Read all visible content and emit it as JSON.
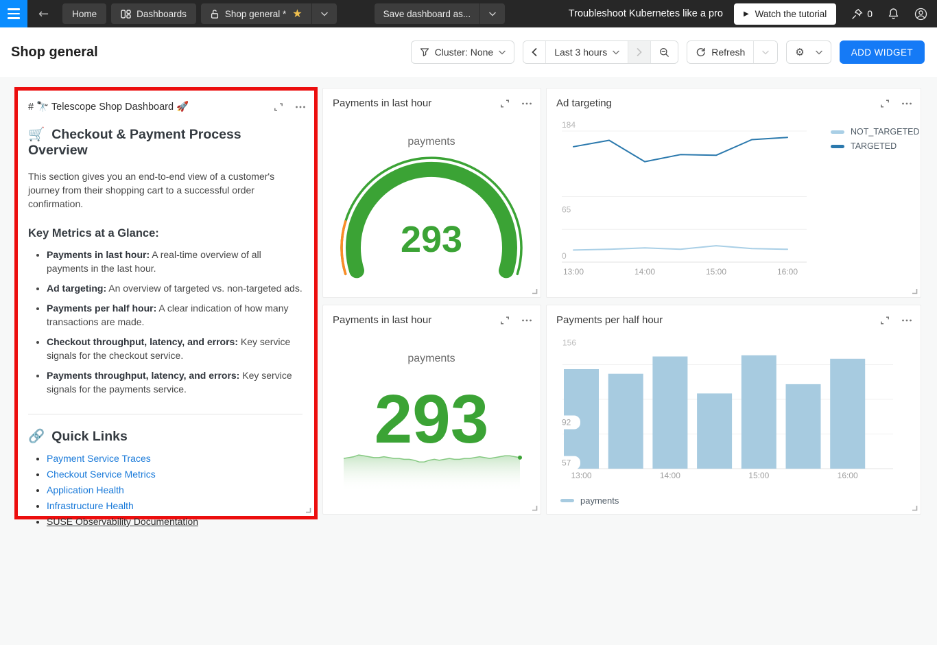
{
  "navbar": {
    "home": "Home",
    "dashboards": "Dashboards",
    "shop_tab": "Shop general *",
    "star": "★",
    "save_as": "Save dashboard as...",
    "promo_text": "Troubleshoot Kubernetes like a pro",
    "watch_button": "Watch the tutorial",
    "pin_count": "0"
  },
  "header": {
    "title": "Shop general",
    "cluster_button": "Cluster: None",
    "time_range": "Last 3 hours",
    "refresh": "Refresh",
    "add_widget": "ADD WIDGET"
  },
  "markdown_widget": {
    "title": "# 🔭 Telescope Shop Dashboard 🚀",
    "heading_icon": "🛒",
    "heading_text": "Checkout & Payment Process Overview",
    "intro": "This section gives you an end-to-end view of a customer's journey from their shopping cart to a successful order confirmation.",
    "metrics_heading": "Key Metrics at a Glance:",
    "metrics": [
      {
        "label": "Payments in last hour:",
        "text": "A real-time overview of all payments in the last hour."
      },
      {
        "label": "Ad targeting:",
        "text": "An overview of targeted vs. non-targeted ads."
      },
      {
        "label": "Payments per half hour:",
        "text": "A clear indication of how many transactions are made."
      },
      {
        "label": "Checkout throughput, latency, and errors:",
        "text": "Key service signals for the checkout service."
      },
      {
        "label": "Payments throughput, latency, and errors:",
        "text": "Key service signals for the payments service."
      }
    ],
    "links_icon": "🔗",
    "links_text": "Quick Links",
    "links": [
      {
        "label": "Payment Service Traces",
        "style": "link"
      },
      {
        "label": "Checkout Service Metrics",
        "style": "link"
      },
      {
        "label": "Application Health",
        "style": "link"
      },
      {
        "label": "Infrastructure Health",
        "style": "link"
      },
      {
        "label": "SUSE Observability Documentation",
        "style": "plain-underline"
      }
    ]
  },
  "widgets": {
    "gauge": {
      "title": "Payments in last hour"
    },
    "ad_targeting": {
      "title": "Ad targeting"
    },
    "number": {
      "title": "Payments in last hour"
    },
    "bars": {
      "title": "Payments per half hour"
    }
  },
  "chart_data": [
    {
      "id": "gauge-payments",
      "type": "gauge",
      "title": "Payments in last hour",
      "metric_label": "payments",
      "value": 293,
      "color_ok": "#3ba335",
      "color_warn": "#fc8b26"
    },
    {
      "id": "ad-targeting",
      "type": "line",
      "title": "Ad targeting",
      "x": [
        "13:00",
        "13:30",
        "14:00",
        "14:30",
        "15:00",
        "15:30",
        "16:00"
      ],
      "x_tick_labels": [
        "13:00",
        "14:00",
        "15:00",
        "16:00"
      ],
      "yticks": [
        184,
        65,
        0
      ],
      "gridline_values": [
        184,
        92,
        46,
        0
      ],
      "ylim": [
        0,
        184
      ],
      "legend_position": "right",
      "series": [
        {
          "name": "NOT_TARGETED",
          "color": "#a9cfe6",
          "values": [
            17,
            18,
            20,
            18,
            23,
            19,
            18
          ]
        },
        {
          "name": "TARGETED",
          "color": "#2b79ad",
          "values": [
            162,
            171,
            141,
            151,
            150,
            172,
            175
          ]
        }
      ]
    },
    {
      "id": "payments-number",
      "type": "number+spark",
      "title": "Payments in last hour",
      "metric_label": "payments",
      "value": 293,
      "color": "#3ba335",
      "spark": [
        292,
        293,
        294,
        296,
        295,
        294,
        293,
        293,
        294,
        293,
        292,
        292,
        291,
        291,
        290,
        288,
        288,
        290,
        291,
        290,
        291,
        292,
        291,
        291,
        292,
        292,
        293,
        294,
        293,
        292,
        293,
        294,
        295,
        295,
        294,
        293
      ]
    },
    {
      "id": "payments-per-half-hour",
      "type": "bar",
      "title": "Payments per half hour",
      "categories": [
        "13:00",
        "13:30",
        "14:00",
        "14:30",
        "15:00",
        "15:30",
        "16:00"
      ],
      "x_tick_labels": [
        "13:00",
        "14:00",
        "15:00",
        "16:00"
      ],
      "values": [
        138,
        134,
        149,
        117,
        150,
        125,
        147
      ],
      "yticks": [
        156,
        92,
        57
      ],
      "ylim": [
        52,
        156
      ],
      "bar_color": "#a7cbe0",
      "legend": "payments"
    }
  ],
  "colors": {
    "accent_blue": "#157af6",
    "nav_bg": "#272727",
    "hamburger_blue": "#0a8dff",
    "highlight_red": "#ec0e0e",
    "green": "#3ba335",
    "orange": "#fc8b26",
    "link": "#1879d9"
  }
}
